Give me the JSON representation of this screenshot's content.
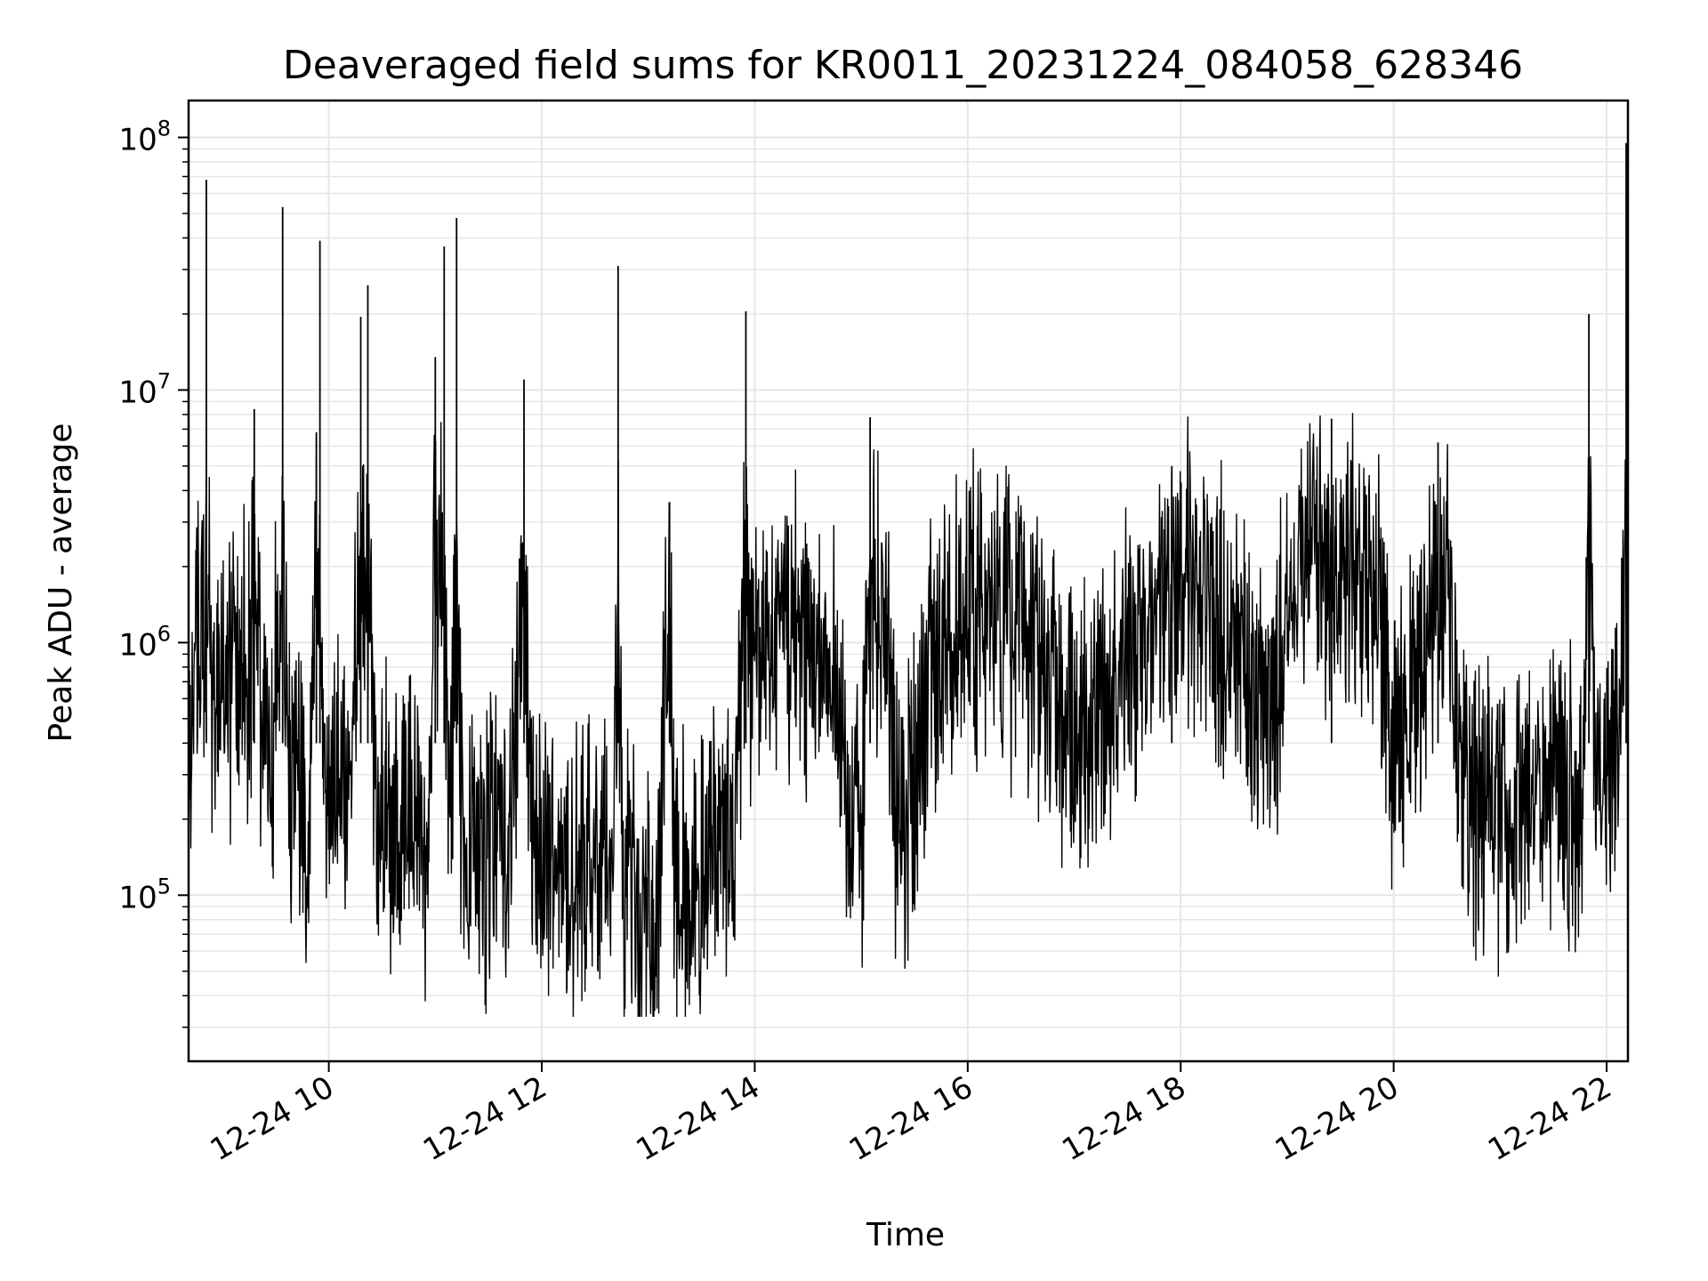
{
  "chart_data": {
    "type": "line",
    "title": "Deaveraged field sums for KR0011_20231224_084058_628346",
    "xlabel": "Time",
    "ylabel": "Peak ADU - average",
    "yscale": "log",
    "xlim": [
      "2023-12-24 08:41",
      "2023-12-24 22:12"
    ],
    "ylim": [
      22000,
      140000000
    ],
    "grid": true,
    "line_color": "#000000",
    "grid_color": "#e6e6e6",
    "x_ticks": [
      "12-24 10",
      "12-24 12",
      "12-24 14",
      "12-24 16",
      "12-24 18",
      "12-24 20",
      "12-24 22"
    ],
    "y_ticks": [
      {
        "base": "10",
        "exp": "5",
        "value": 100000
      },
      {
        "base": "10",
        "exp": "6",
        "value": 1000000
      },
      {
        "base": "10",
        "exp": "7",
        "value": 10000000
      },
      {
        "base": "10",
        "exp": "8",
        "value": 100000000
      }
    ],
    "series": [
      {
        "values": [
          [
            "2023-12-24 08:42",
            600000
          ],
          [
            "2023-12-24 08:45",
            900000
          ],
          [
            "2023-12-24 08:48",
            700000
          ],
          [
            "2023-12-24 08:51",
            68000000
          ],
          [
            "2023-12-24 08:54",
            700000
          ],
          [
            "2023-12-24 09:00",
            800000
          ],
          [
            "2023-12-24 09:05",
            600000
          ],
          [
            "2023-12-24 09:10",
            900000
          ],
          [
            "2023-12-24 09:15",
            700000
          ],
          [
            "2023-12-24 09:18",
            8400000
          ],
          [
            "2023-12-24 09:22",
            400000
          ],
          [
            "2023-12-24 09:28",
            350000
          ],
          [
            "2023-12-24 09:34",
            53000000
          ],
          [
            "2023-12-24 09:38",
            300000
          ],
          [
            "2023-12-24 09:44",
            250000
          ],
          [
            "2023-12-24 09:48",
            200000
          ],
          [
            "2023-12-24 09:53",
            6800000
          ],
          [
            "2023-12-24 09:55",
            39000000
          ],
          [
            "2023-12-24 09:58",
            250000
          ],
          [
            "2023-12-24 10:05",
            300000
          ],
          [
            "2023-12-24 10:12",
            280000
          ],
          [
            "2023-12-24 10:18",
            19500000
          ],
          [
            "2023-12-24 10:22",
            26000000
          ],
          [
            "2023-12-24 10:26",
            220000
          ],
          [
            "2023-12-24 10:35",
            200000
          ],
          [
            "2023-12-24 10:45",
            180000
          ],
          [
            "2023-12-24 10:55",
            170000
          ],
          [
            "2023-12-24 11:00",
            13500000
          ],
          [
            "2023-12-24 11:03",
            2300000
          ],
          [
            "2023-12-24 11:05",
            37000000
          ],
          [
            "2023-12-24 11:08",
            180000
          ],
          [
            "2023-12-24 11:12",
            48000000
          ],
          [
            "2023-12-24 11:15",
            160000
          ],
          [
            "2023-12-24 11:25",
            150000
          ],
          [
            "2023-12-24 11:35",
            150000
          ],
          [
            "2023-12-24 11:42",
            140000
          ],
          [
            "2023-12-24 11:50",
            11000000
          ],
          [
            "2023-12-24 11:55",
            140000
          ],
          [
            "2023-12-24 12:05",
            150000
          ],
          [
            "2023-12-24 12:15",
            120000
          ],
          [
            "2023-12-24 12:25",
            140000
          ],
          [
            "2023-12-24 12:40",
            120000
          ],
          [
            "2023-12-24 12:43",
            31000000
          ],
          [
            "2023-12-24 12:46",
            100000
          ],
          [
            "2023-12-24 12:55",
            90000
          ],
          [
            "2023-12-24 13:05",
            80000
          ],
          [
            "2023-12-24 13:12",
            3600000
          ],
          [
            "2023-12-24 13:15",
            90000
          ],
          [
            "2023-12-24 13:25",
            120000
          ],
          [
            "2023-12-24 13:35",
            150000
          ],
          [
            "2023-12-24 13:45",
            180000
          ],
          [
            "2023-12-24 13:50",
            200000
          ],
          [
            "2023-12-24 13:55",
            20500000
          ],
          [
            "2023-12-24 13:58",
            900000
          ],
          [
            "2023-12-24 14:05",
            1000000
          ],
          [
            "2023-12-24 14:15",
            1200000
          ],
          [
            "2023-12-24 14:25",
            1100000
          ],
          [
            "2023-12-24 14:35",
            900000
          ],
          [
            "2023-12-24 14:45",
            600000
          ],
          [
            "2023-12-24 14:55",
            250000
          ],
          [
            "2023-12-24 15:00",
            150000
          ],
          [
            "2023-12-24 15:05",
            7800000
          ],
          [
            "2023-12-24 15:10",
            1200000
          ],
          [
            "2023-12-24 15:15",
            1400000
          ],
          [
            "2023-12-24 15:20",
            200000
          ],
          [
            "2023-12-24 15:25",
            180000
          ],
          [
            "2023-12-24 15:30",
            300000
          ],
          [
            "2023-12-24 15:40",
            700000
          ],
          [
            "2023-12-24 15:50",
            1000000
          ],
          [
            "2023-12-24 16:00",
            1200000
          ],
          [
            "2023-12-24 16:10",
            1500000
          ],
          [
            "2023-12-24 16:20",
            1300000
          ],
          [
            "2023-12-24 16:30",
            1100000
          ],
          [
            "2023-12-24 16:40",
            900000
          ],
          [
            "2023-12-24 16:50",
            600000
          ],
          [
            "2023-12-24 17:00",
            500000
          ],
          [
            "2023-12-24 17:10",
            400000
          ],
          [
            "2023-12-24 17:20",
            600000
          ],
          [
            "2023-12-24 17:30",
            900000
          ],
          [
            "2023-12-24 17:40",
            1200000
          ],
          [
            "2023-12-24 17:50",
            1500000
          ],
          [
            "2023-12-24 17:55",
            5000000
          ],
          [
            "2023-12-24 18:00",
            1800000
          ],
          [
            "2023-12-24 18:10",
            1600000
          ],
          [
            "2023-12-24 18:20",
            1200000
          ],
          [
            "2023-12-24 18:30",
            900000
          ],
          [
            "2023-12-24 18:40",
            700000
          ],
          [
            "2023-12-24 18:50",
            500000
          ],
          [
            "2023-12-24 19:00",
            1500000
          ],
          [
            "2023-12-24 19:10",
            2200000
          ],
          [
            "2023-12-24 19:20",
            1800000
          ],
          [
            "2023-12-24 19:25",
            7700000
          ],
          [
            "2023-12-24 19:30",
            2000000
          ],
          [
            "2023-12-24 19:40",
            2500000
          ],
          [
            "2023-12-24 19:50",
            1500000
          ],
          [
            "2023-12-24 20:00",
            400000
          ],
          [
            "2023-12-24 20:10",
            600000
          ],
          [
            "2023-12-24 20:20",
            1500000
          ],
          [
            "2023-12-24 20:25",
            6200000
          ],
          [
            "2023-12-24 20:30",
            2500000
          ],
          [
            "2023-12-24 20:35",
            400000
          ],
          [
            "2023-12-24 20:45",
            250000
          ],
          [
            "2023-12-24 20:55",
            200000
          ],
          [
            "2023-12-24 21:05",
            200000
          ],
          [
            "2023-12-24 21:15",
            250000
          ],
          [
            "2023-12-24 21:25",
            300000
          ],
          [
            "2023-12-24 21:35",
            250000
          ],
          [
            "2023-12-24 21:45",
            200000
          ],
          [
            "2023-12-24 21:50",
            20000000
          ],
          [
            "2023-12-24 21:55",
            300000
          ],
          [
            "2023-12-24 22:05",
            500000
          ],
          [
            "2023-12-24 22:10",
            900000
          ],
          [
            "2023-12-24 22:11",
            95000000
          ]
        ]
      }
    ]
  }
}
